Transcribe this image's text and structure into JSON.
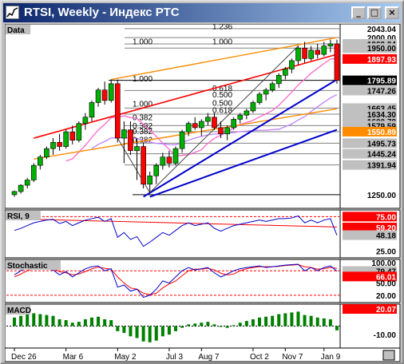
{
  "window": {
    "title": "RTSI, Weekly - Индекс РТС",
    "buttons": {
      "minimize": "_",
      "maximize": "□",
      "close": "×"
    }
  },
  "panes": {
    "price": {
      "title": "Data",
      "levels": [
        {
          "text": "2043.04",
          "kind": "plain",
          "y": 2043.04
        },
        {
          "text": "2000.00",
          "kind": "plain",
          "y": 2000.0
        },
        {
          "text": "1969.94",
          "kind": "box",
          "y": 1969.94
        },
        {
          "text": "1950.00",
          "kind": "box",
          "y": 1950.0
        },
        {
          "text": "1897.93",
          "kind": "red",
          "y": 1897.93
        },
        {
          "text": "1795.89",
          "kind": "black",
          "y": 1795.89
        },
        {
          "text": "1747.26",
          "kind": "box",
          "y": 1747.26
        },
        {
          "text": "1600.78",
          "kind": "box",
          "y": 1600.78
        },
        {
          "text": "1663.45",
          "kind": "box",
          "y": 1663.45
        },
        {
          "text": "1634.30",
          "kind": "box",
          "y": 1634.3
        },
        {
          "text": "1579.59",
          "kind": "box",
          "y": 1579.59
        },
        {
          "text": "1550.89",
          "kind": "orange",
          "y": 1550.89
        },
        {
          "text": "1495.73",
          "kind": "box",
          "y": 1495.73
        },
        {
          "text": "1445.24",
          "kind": "box",
          "y": 1445.24
        },
        {
          "text": "1391.94",
          "kind": "box",
          "y": 1391.94
        },
        {
          "text": "1250.00",
          "kind": "plain",
          "y": 1250.0
        }
      ],
      "fib_labels": [
        "1.236",
        "1.000",
        "1.000",
        "1.000",
        "1.000",
        "0.618",
        "0.500",
        "0.382",
        "0.382",
        "0.500",
        "0.618",
        "0.382",
        "0.382"
      ]
    },
    "rsi": {
      "title": "RSI, 9",
      "levels": [
        {
          "text": "75.00",
          "kind": "red",
          "y": 75
        },
        {
          "text": "59.20",
          "kind": "red",
          "y": 59.2
        },
        {
          "text": "48.18",
          "kind": "box",
          "y": 48.18
        },
        {
          "text": "25.00",
          "kind": "plain",
          "y": 25
        }
      ]
    },
    "stochastic": {
      "title": "Stochastic",
      "levels": [
        {
          "text": "100.00",
          "kind": "plain",
          "y": 100
        },
        {
          "text": "79.47",
          "kind": "box",
          "y": 79.47
        },
        {
          "text": "66.01",
          "kind": "red",
          "y": 66.01
        },
        {
          "text": "50.00",
          "kind": "plain",
          "y": 50
        },
        {
          "text": "20.00",
          "kind": "plain",
          "y": 20
        }
      ]
    },
    "macd": {
      "title": "MACD",
      "levels": [
        {
          "text": "20.07",
          "kind": "red",
          "y": 20.07
        },
        {
          "text": "-10.00",
          "kind": "plain",
          "y": -10
        }
      ]
    }
  },
  "x_axis": {
    "labels": [
      "Dec 26",
      "Mar 6",
      "May 2",
      "Jul 3",
      "Aug 7",
      "Oct 2",
      "Nov 7",
      "Jan 9"
    ]
  },
  "chart_data": {
    "type": "bar",
    "title": "RTSI, Weekly - Индекс РТС",
    "ylim": [
      1200,
      2050
    ],
    "candles": [
      [
        1250,
        1270,
        1240,
        1265
      ],
      [
        1265,
        1300,
        1255,
        1295
      ],
      [
        1295,
        1330,
        1280,
        1320
      ],
      [
        1320,
        1400,
        1310,
        1390
      ],
      [
        1390,
        1440,
        1370,
        1430
      ],
      [
        1430,
        1480,
        1420,
        1470
      ],
      [
        1470,
        1520,
        1440,
        1500
      ],
      [
        1500,
        1540,
        1460,
        1480
      ],
      [
        1480,
        1560,
        1470,
        1550
      ],
      [
        1550,
        1580,
        1490,
        1510
      ],
      [
        1510,
        1600,
        1500,
        1590
      ],
      [
        1590,
        1640,
        1560,
        1620
      ],
      [
        1620,
        1700,
        1600,
        1690
      ],
      [
        1690,
        1760,
        1670,
        1750
      ],
      [
        1750,
        1790,
        1680,
        1700
      ],
      [
        1700,
        1800,
        1690,
        1780
      ],
      [
        1780,
        1800,
        1500,
        1520
      ],
      [
        1520,
        1600,
        1400,
        1560
      ],
      [
        1560,
        1600,
        1440,
        1460
      ],
      [
        1460,
        1520,
        1320,
        1480
      ],
      [
        1480,
        1500,
        1280,
        1300
      ],
      [
        1300,
        1360,
        1260,
        1340
      ],
      [
        1340,
        1400,
        1300,
        1390
      ],
      [
        1390,
        1450,
        1370,
        1430
      ],
      [
        1430,
        1460,
        1380,
        1400
      ],
      [
        1400,
        1480,
        1390,
        1470
      ],
      [
        1470,
        1560,
        1450,
        1550
      ],
      [
        1550,
        1600,
        1530,
        1590
      ],
      [
        1590,
        1620,
        1560,
        1570
      ],
      [
        1570,
        1610,
        1530,
        1600
      ],
      [
        1600,
        1640,
        1580,
        1620
      ],
      [
        1620,
        1640,
        1560,
        1570
      ],
      [
        1570,
        1600,
        1520,
        1540
      ],
      [
        1540,
        1580,
        1510,
        1570
      ],
      [
        1570,
        1620,
        1560,
        1610
      ],
      [
        1610,
        1640,
        1590,
        1630
      ],
      [
        1630,
        1660,
        1610,
        1650
      ],
      [
        1650,
        1700,
        1640,
        1690
      ],
      [
        1690,
        1740,
        1680,
        1730
      ],
      [
        1730,
        1760,
        1700,
        1750
      ],
      [
        1750,
        1790,
        1740,
        1780
      ],
      [
        1780,
        1830,
        1760,
        1820
      ],
      [
        1820,
        1860,
        1800,
        1850
      ],
      [
        1850,
        1900,
        1830,
        1890
      ],
      [
        1890,
        1960,
        1870,
        1950
      ],
      [
        1950,
        1980,
        1880,
        1900
      ],
      [
        1900,
        1960,
        1890,
        1940
      ],
      [
        1940,
        1970,
        1900,
        1920
      ],
      [
        1920,
        1980,
        1910,
        1960
      ],
      [
        1960,
        1990,
        1930,
        1970
      ],
      [
        1970,
        1990,
        1780,
        1796
      ]
    ],
    "rsi": [
      55,
      58,
      62,
      66,
      68,
      70,
      71,
      65,
      68,
      62,
      66,
      70,
      72,
      74,
      68,
      72,
      45,
      52,
      42,
      46,
      32,
      38,
      45,
      52,
      48,
      55,
      62,
      66,
      62,
      64,
      66,
      58,
      54,
      58,
      62,
      64,
      66,
      68,
      70,
      68,
      70,
      72,
      72,
      73,
      76,
      66,
      70,
      66,
      70,
      72,
      48
    ],
    "stochastic_k": [
      70,
      80,
      88,
      92,
      90,
      85,
      82,
      70,
      78,
      65,
      75,
      85,
      90,
      92,
      80,
      85,
      40,
      45,
      30,
      35,
      15,
      20,
      35,
      55,
      50,
      65,
      80,
      88,
      82,
      85,
      88,
      75,
      65,
      72,
      80,
      85,
      88,
      90,
      92,
      88,
      90,
      92,
      94,
      95,
      96,
      80,
      88,
      80,
      88,
      92,
      79
    ],
    "stochastic_d": [
      65,
      72,
      80,
      86,
      90,
      88,
      85,
      78,
      75,
      70,
      72,
      78,
      85,
      89,
      86,
      84,
      65,
      50,
      38,
      35,
      25,
      22,
      25,
      38,
      48,
      55,
      68,
      80,
      84,
      84,
      86,
      82,
      74,
      70,
      72,
      80,
      85,
      88,
      90,
      90,
      90,
      91,
      93,
      94,
      95,
      90,
      88,
      84,
      85,
      88,
      86
    ],
    "macd_hist": [
      10,
      12,
      14,
      15,
      14,
      13,
      12,
      8,
      7,
      4,
      5,
      8,
      10,
      11,
      8,
      7,
      -6,
      -8,
      -12,
      -14,
      -18,
      -19,
      -17,
      -12,
      -10,
      -6,
      -2,
      2,
      3,
      4,
      5,
      2,
      -1,
      -2,
      1,
      4,
      6,
      8,
      10,
      11,
      12,
      14,
      15,
      16,
      17,
      13,
      12,
      10,
      9,
      8,
      -5
    ]
  }
}
